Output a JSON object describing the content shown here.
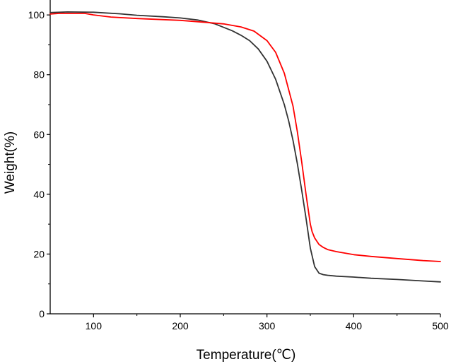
{
  "chart_data": {
    "type": "line",
    "xlabel": "Temperature(℃)",
    "ylabel": "Weight(%)",
    "xlim": [
      50,
      500
    ],
    "ylim": [
      0,
      105
    ],
    "xticks": [
      100,
      200,
      300,
      400,
      500
    ],
    "yticks": [
      0,
      20,
      40,
      60,
      80,
      100
    ],
    "grid": false,
    "series": [
      {
        "color": "#333333",
        "x": [
          50,
          70,
          100,
          130,
          150,
          180,
          200,
          220,
          240,
          260,
          270,
          280,
          290,
          300,
          310,
          320,
          325,
          330,
          335,
          340,
          345,
          350,
          355,
          360,
          365,
          370,
          380,
          400,
          420,
          450,
          480,
          500
        ],
        "y": [
          100.8,
          101.0,
          100.9,
          100.4,
          99.9,
          99.4,
          99.0,
          98.3,
          97.0,
          94.7,
          93.2,
          91.4,
          88.6,
          84.5,
          78.5,
          70.0,
          64.6,
          58.0,
          50.3,
          41.5,
          32.0,
          22.0,
          15.8,
          13.6,
          13.1,
          12.9,
          12.6,
          12.3,
          11.9,
          11.5,
          11.0,
          10.7
        ]
      },
      {
        "color": "#ff0000",
        "x": [
          50,
          60,
          90,
          100,
          120,
          150,
          200,
          230,
          250,
          270,
          285,
          300,
          310,
          320,
          330,
          335,
          340,
          345,
          350,
          352,
          355,
          360,
          365,
          370,
          380,
          400,
          420,
          450,
          480,
          500
        ],
        "y": [
          100.3,
          100.5,
          100.5,
          100.0,
          99.3,
          98.8,
          98.2,
          97.5,
          97.0,
          96.0,
          94.6,
          91.4,
          87.5,
          80.5,
          69.5,
          61.0,
          51.0,
          40.0,
          30.0,
          27.5,
          25.4,
          23.2,
          22.2,
          21.5,
          20.8,
          19.8,
          19.2,
          18.5,
          17.8,
          17.5
        ]
      }
    ]
  }
}
